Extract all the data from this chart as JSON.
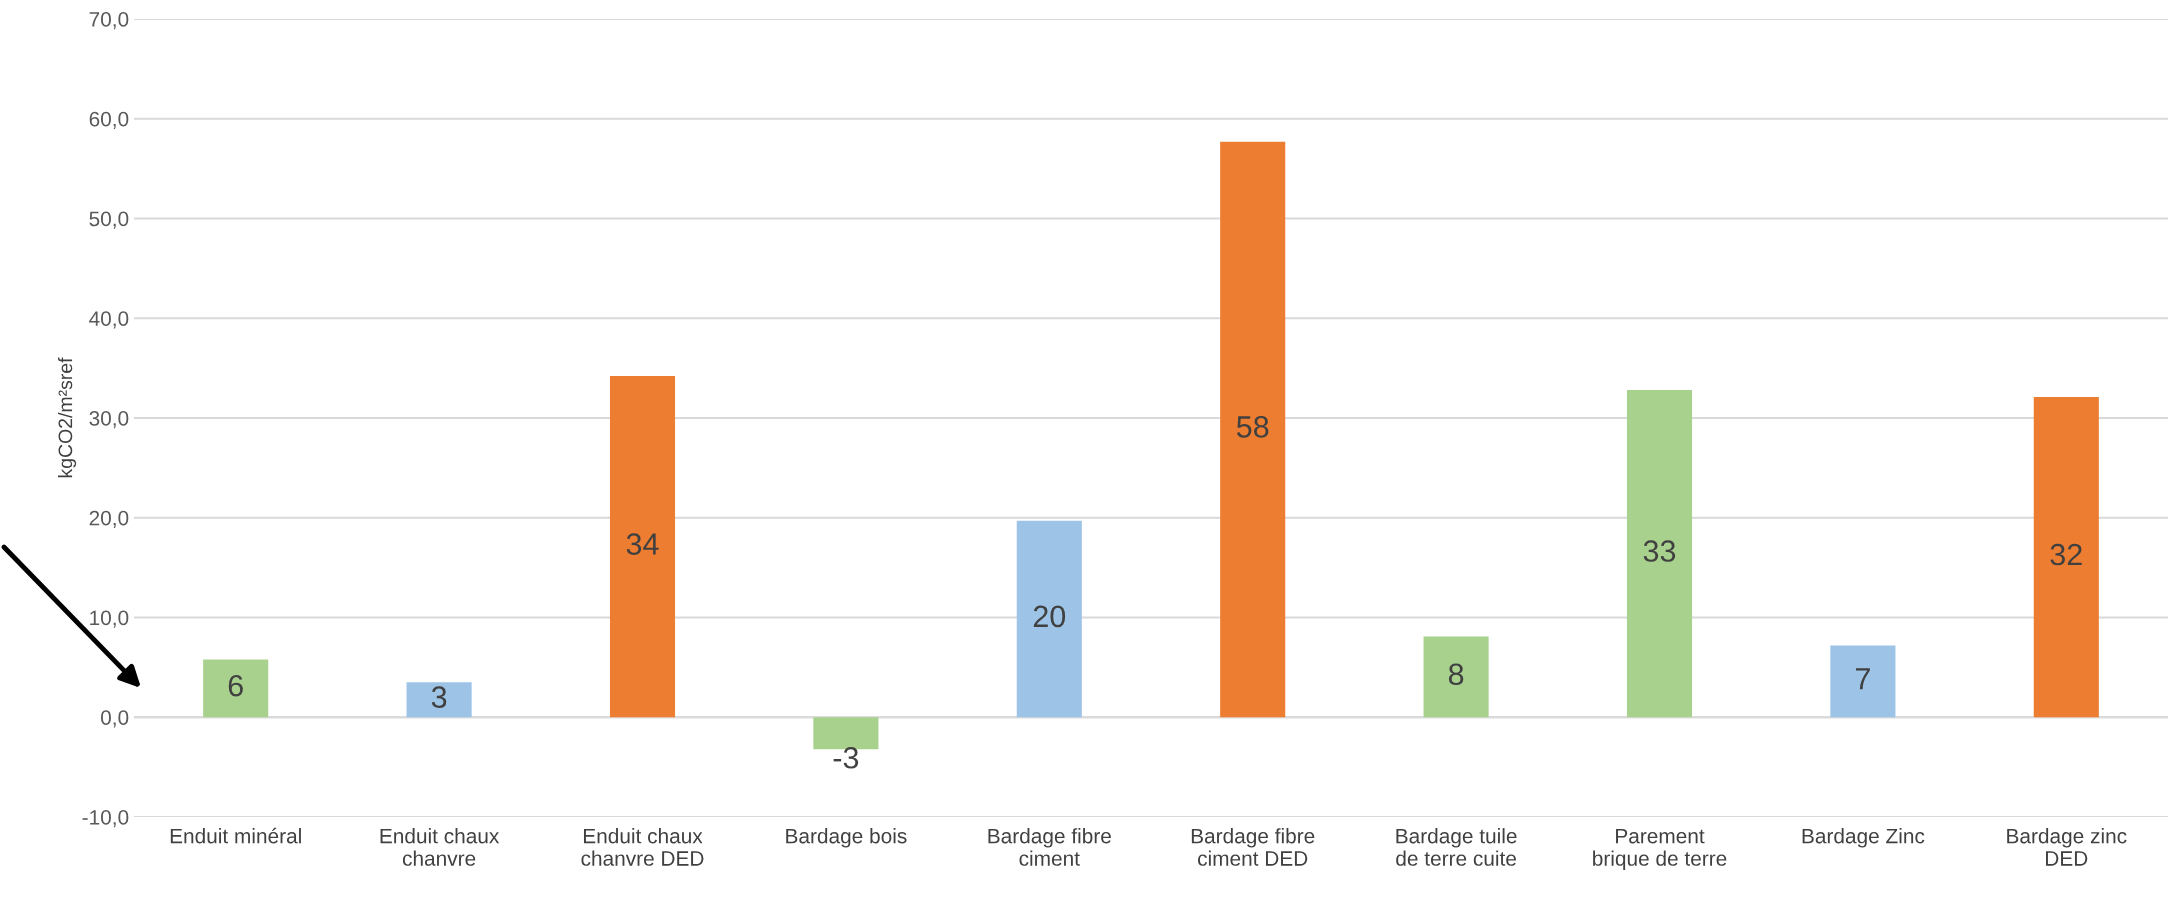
{
  "chart_data": {
    "type": "bar",
    "ylabel": "kgCO2/m²sref",
    "categories": [
      "Enduit minéral",
      "Enduit chaux\nchanvre",
      "Enduit chaux\nchanvre DED",
      "Bardage bois",
      "Bardage fibre\nciment",
      "Bardage fibre\nciment DED",
      "Bardage tuile\nde terre cuite",
      "Parement\nbrique de terre",
      "Bardage Zinc",
      "Bardage zinc\nDED"
    ],
    "values": [
      5.8,
      3.5,
      34.2,
      -3.2,
      19.7,
      57.7,
      8.1,
      32.8,
      7.2,
      32.1
    ],
    "value_labels": [
      "6",
      "3",
      "34",
      "-3",
      "20",
      "58",
      "8",
      "33",
      "7",
      "32"
    ],
    "colors": [
      "#a9d18e",
      "#9dc3e6",
      "#ed7d31",
      "#a9d18e",
      "#9dc3e6",
      "#ed7d31",
      "#a9d18e",
      "#a9d18e",
      "#9dc3e6",
      "#ed7d31"
    ],
    "ylim": [
      -10,
      70
    ],
    "yticks": [
      {
        "value": -10,
        "label": "-10,0"
      },
      {
        "value": 0,
        "label": "0,0"
      },
      {
        "value": 10,
        "label": "10,0"
      },
      {
        "value": 20,
        "label": "20,0"
      },
      {
        "value": 30,
        "label": "30,0"
      },
      {
        "value": 40,
        "label": "40,0"
      },
      {
        "value": 50,
        "label": "50,0"
      },
      {
        "value": 60,
        "label": "60,0"
      },
      {
        "value": 70,
        "label": "70,0"
      }
    ],
    "grid": "y",
    "legend": false
  }
}
